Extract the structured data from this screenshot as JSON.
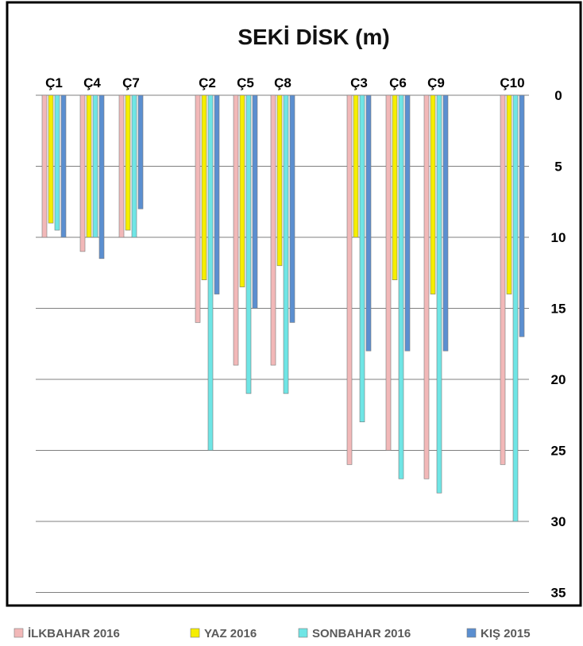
{
  "chart_data": {
    "type": "bar",
    "title": "SEKİ DİSK (m)",
    "xlabel": "",
    "ylabel": "",
    "y_axis_inverted": true,
    "y_axis_position": "right",
    "category_axis_position": "top",
    "ylim": [
      0,
      35
    ],
    "yticks": [
      0,
      5,
      10,
      15,
      20,
      25,
      30,
      35
    ],
    "grid": true,
    "legend_position": "bottom",
    "categories": [
      "Ç1",
      "Ç4",
      "Ç7",
      "Ç2",
      "Ç5",
      "Ç8",
      "Ç3",
      "Ç6",
      "Ç9",
      "Ç10"
    ],
    "series": [
      {
        "name": "İLKBAHAR 2016",
        "color": "#f2b8b8",
        "values": [
          10,
          11,
          10,
          16,
          19,
          19,
          26,
          25,
          27,
          26
        ]
      },
      {
        "name": "YAZ 2016",
        "color": "#f5ee00",
        "values": [
          9,
          10,
          9.5,
          13,
          13.5,
          12,
          10,
          13,
          14,
          14
        ]
      },
      {
        "name": "SONBAHAR 2016",
        "color": "#6fe5e5",
        "values": [
          9.5,
          10,
          10,
          25,
          21,
          21,
          23,
          27,
          28,
          30
        ]
      },
      {
        "name": "KIŞ 2015",
        "color": "#5b8fd0",
        "values": [
          10,
          11.5,
          8,
          14,
          15,
          16,
          18,
          18,
          18,
          17
        ]
      }
    ]
  }
}
